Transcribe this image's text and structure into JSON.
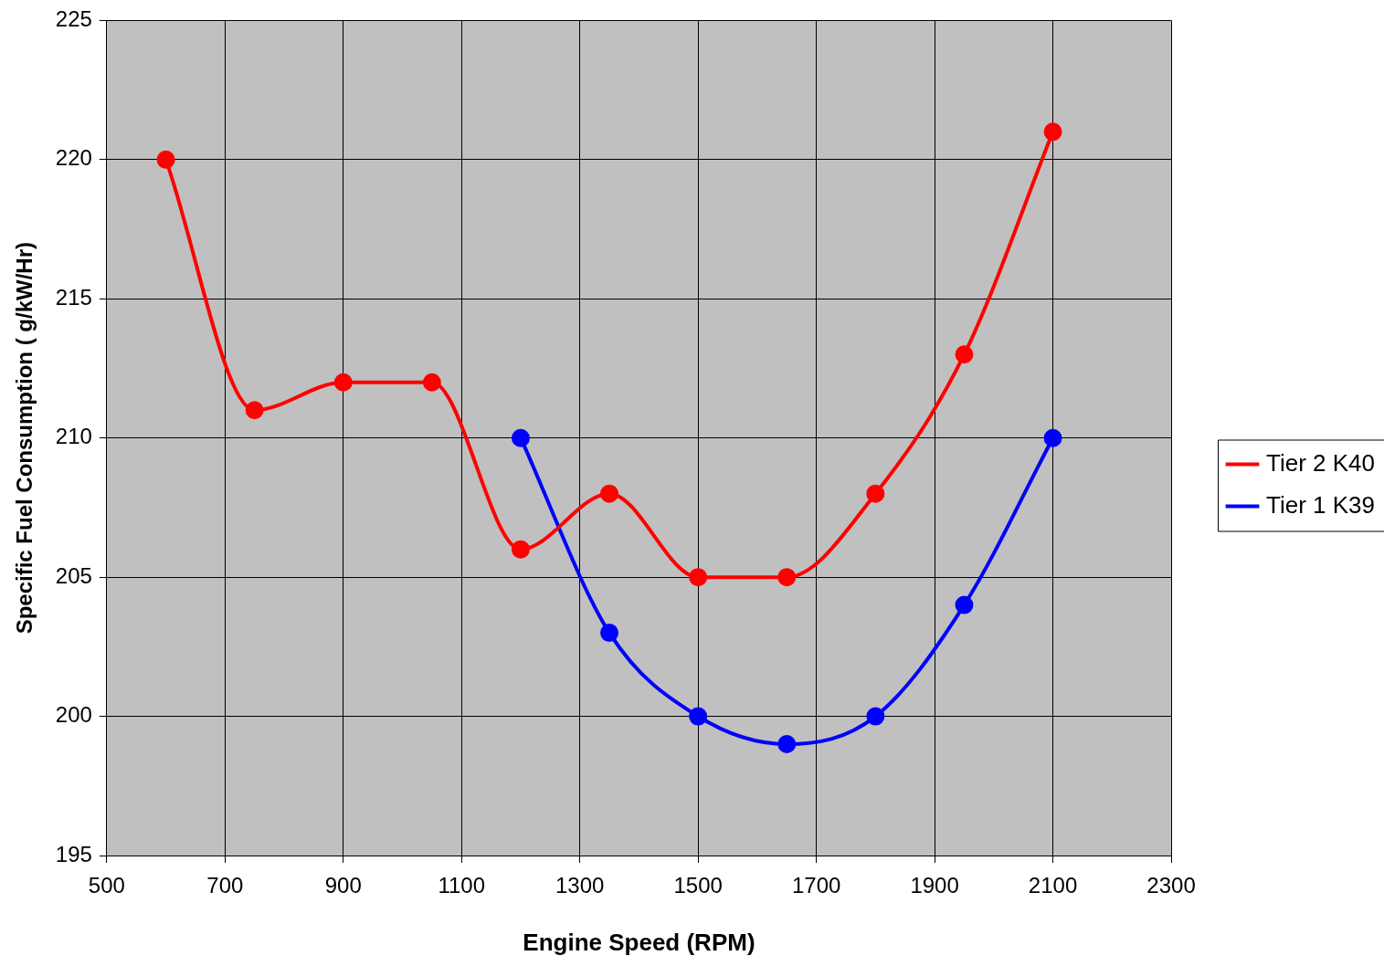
{
  "chart_data": {
    "type": "line",
    "xlabel": "Engine Speed (RPM)",
    "ylabel": "Specific Fuel Consumption ( g/kW/Hr)",
    "x": [
      600,
      750,
      900,
      1050,
      1200,
      1350,
      1500,
      1650,
      1800,
      1950,
      2100
    ],
    "series": [
      {
        "name": "Tier 2 K40",
        "color": "#ff0000",
        "values": [
          220,
          211,
          212,
          212,
          206,
          208,
          205,
          205,
          208,
          213,
          221
        ]
      },
      {
        "name": "Tier 1 K39",
        "color": "#0000ff",
        "x": [
          1200,
          1350,
          1500,
          1650,
          1800,
          1950,
          2100
        ],
        "values": [
          210,
          203,
          200,
          199,
          200,
          204,
          210
        ]
      }
    ],
    "xlim": [
      500,
      2300
    ],
    "xticks": [
      500,
      700,
      900,
      1100,
      1300,
      1500,
      1700,
      1900,
      2100,
      2300
    ],
    "ylim": [
      195,
      225
    ],
    "yticks": [
      195,
      200,
      205,
      210,
      215,
      220,
      225
    ],
    "grid": true,
    "legend": "right",
    "marker": "circle",
    "line_style": "solid"
  }
}
